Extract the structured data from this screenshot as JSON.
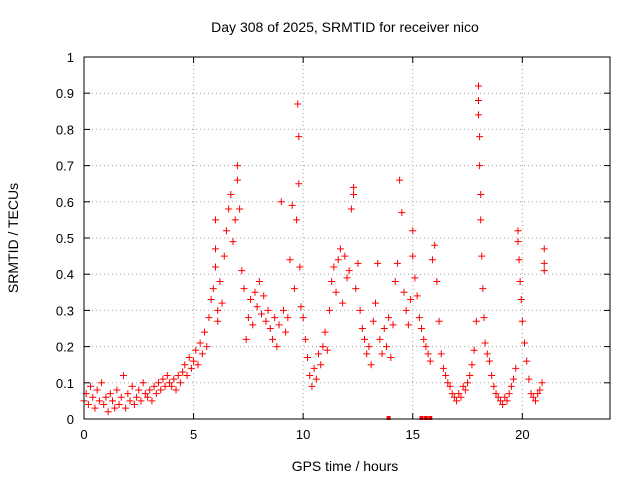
{
  "chart_data": {
    "type": "scatter",
    "title": "Day 308 of 2025, SRMTID for receiver nico",
    "xlabel": "GPS time / hours",
    "ylabel": "SRMTID / TECUs",
    "xlim": [
      0,
      24
    ],
    "ylim": [
      0,
      1
    ],
    "xticks": [
      0,
      5,
      10,
      15,
      20
    ],
    "yticks": [
      0,
      0.1,
      0.2,
      0.3,
      0.4,
      0.5,
      0.6,
      0.7,
      0.8,
      0.9,
      1
    ],
    "grid": true,
    "marker": "plus",
    "color": "#ff0000",
    "series": [
      {
        "name": "SRMTID",
        "points": [
          [
            0.0,
            0.05
          ],
          [
            0.1,
            0.07
          ],
          [
            0.2,
            0.04
          ],
          [
            0.3,
            0.09
          ],
          [
            0.4,
            0.06
          ],
          [
            0.5,
            0.03
          ],
          [
            0.6,
            0.08
          ],
          [
            0.7,
            0.05
          ],
          [
            0.8,
            0.1
          ],
          [
            0.9,
            0.04
          ],
          [
            1.0,
            0.06
          ],
          [
            1.1,
            0.02
          ],
          [
            1.2,
            0.07
          ],
          [
            1.3,
            0.05
          ],
          [
            1.4,
            0.03
          ],
          [
            1.5,
            0.08
          ],
          [
            1.6,
            0.04
          ],
          [
            1.7,
            0.06
          ],
          [
            1.8,
            0.12
          ],
          [
            1.9,
            0.03
          ],
          [
            2.0,
            0.07
          ],
          [
            2.1,
            0.05
          ],
          [
            2.2,
            0.09
          ],
          [
            2.3,
            0.04
          ],
          [
            2.4,
            0.06
          ],
          [
            2.5,
            0.08
          ],
          [
            2.6,
            0.05
          ],
          [
            2.7,
            0.1
          ],
          [
            2.8,
            0.07
          ],
          [
            2.9,
            0.06
          ],
          [
            3.0,
            0.08
          ],
          [
            3.1,
            0.05
          ],
          [
            3.2,
            0.09
          ],
          [
            3.3,
            0.07
          ],
          [
            3.4,
            0.1
          ],
          [
            3.5,
            0.08
          ],
          [
            3.6,
            0.11
          ],
          [
            3.7,
            0.09
          ],
          [
            3.8,
            0.12
          ],
          [
            3.9,
            0.1
          ],
          [
            4.0,
            0.09
          ],
          [
            4.1,
            0.11
          ],
          [
            4.2,
            0.08
          ],
          [
            4.3,
            0.12
          ],
          [
            4.4,
            0.1
          ],
          [
            4.5,
            0.13
          ],
          [
            4.6,
            0.15
          ],
          [
            4.7,
            0.12
          ],
          [
            4.8,
            0.17
          ],
          [
            4.9,
            0.14
          ],
          [
            5.0,
            0.16
          ],
          [
            5.1,
            0.19
          ],
          [
            5.2,
            0.15
          ],
          [
            5.3,
            0.21
          ],
          [
            5.4,
            0.18
          ],
          [
            5.5,
            0.24
          ],
          [
            5.6,
            0.2
          ],
          [
            5.7,
            0.28
          ],
          [
            5.8,
            0.33
          ],
          [
            5.9,
            0.36
          ],
          [
            6.0,
            0.42
          ],
          [
            6.0,
            0.47
          ],
          [
            6.0,
            0.55
          ],
          [
            6.1,
            0.3
          ],
          [
            6.1,
            0.27
          ],
          [
            6.2,
            0.38
          ],
          [
            6.3,
            0.32
          ],
          [
            6.4,
            0.45
          ],
          [
            6.5,
            0.52
          ],
          [
            6.6,
            0.58
          ],
          [
            6.7,
            0.62
          ],
          [
            6.8,
            0.49
          ],
          [
            6.9,
            0.55
          ],
          [
            7.0,
            0.7
          ],
          [
            7.0,
            0.66
          ],
          [
            7.1,
            0.58
          ],
          [
            7.2,
            0.41
          ],
          [
            7.3,
            0.36
          ],
          [
            7.4,
            0.22
          ],
          [
            7.5,
            0.28
          ],
          [
            7.6,
            0.33
          ],
          [
            7.7,
            0.26
          ],
          [
            7.8,
            0.35
          ],
          [
            7.9,
            0.31
          ],
          [
            8.0,
            0.38
          ],
          [
            8.1,
            0.29
          ],
          [
            8.2,
            0.34
          ],
          [
            8.3,
            0.27
          ],
          [
            8.4,
            0.3
          ],
          [
            8.5,
            0.25
          ],
          [
            8.6,
            0.22
          ],
          [
            8.7,
            0.28
          ],
          [
            8.8,
            0.2
          ],
          [
            8.9,
            0.26
          ],
          [
            9.0,
            0.6
          ],
          [
            9.1,
            0.3
          ],
          [
            9.2,
            0.24
          ],
          [
            9.3,
            0.28
          ],
          [
            9.4,
            0.44
          ],
          [
            9.5,
            0.59
          ],
          [
            9.6,
            0.36
          ],
          [
            9.7,
            0.55
          ],
          [
            9.75,
            0.87
          ],
          [
            9.8,
            0.78
          ],
          [
            9.8,
            0.65
          ],
          [
            9.85,
            0.42
          ],
          [
            9.9,
            0.31
          ],
          [
            10.0,
            0.28
          ],
          [
            10.1,
            0.22
          ],
          [
            10.2,
            0.17
          ],
          [
            10.3,
            0.12
          ],
          [
            10.4,
            0.09
          ],
          [
            10.5,
            0.14
          ],
          [
            10.6,
            0.11
          ],
          [
            10.7,
            0.18
          ],
          [
            10.8,
            0.15
          ],
          [
            10.9,
            0.2
          ],
          [
            11.0,
            0.24
          ],
          [
            11.1,
            0.19
          ],
          [
            11.2,
            0.3
          ],
          [
            11.3,
            0.38
          ],
          [
            11.4,
            0.42
          ],
          [
            11.5,
            0.35
          ],
          [
            11.6,
            0.44
          ],
          [
            11.7,
            0.47
          ],
          [
            11.8,
            0.32
          ],
          [
            11.9,
            0.45
          ],
          [
            12.0,
            0.39
          ],
          [
            12.1,
            0.41
          ],
          [
            12.2,
            0.58
          ],
          [
            12.3,
            0.64
          ],
          [
            12.3,
            0.62
          ],
          [
            12.4,
            0.36
          ],
          [
            12.5,
            0.43
          ],
          [
            12.6,
            0.3
          ],
          [
            12.7,
            0.25
          ],
          [
            12.8,
            0.22
          ],
          [
            12.9,
            0.18
          ],
          [
            13.0,
            0.2
          ],
          [
            13.1,
            0.15
          ],
          [
            13.2,
            0.27
          ],
          [
            13.3,
            0.32
          ],
          [
            13.4,
            0.43
          ],
          [
            13.5,
            0.22
          ],
          [
            13.6,
            0.18
          ],
          [
            13.7,
            0.25
          ],
          [
            13.8,
            0.2
          ],
          [
            13.9,
            0.28
          ],
          [
            14.0,
            0.17
          ],
          [
            14.1,
            0.26
          ],
          [
            14.2,
            0.38
          ],
          [
            14.3,
            0.43
          ],
          [
            14.4,
            0.66
          ],
          [
            14.5,
            0.57
          ],
          [
            14.6,
            0.35
          ],
          [
            14.7,
            0.3
          ],
          [
            14.8,
            0.26
          ],
          [
            14.9,
            0.33
          ],
          [
            15.0,
            0.45
          ],
          [
            15.0,
            0.52
          ],
          [
            15.1,
            0.39
          ],
          [
            15.2,
            0.34
          ],
          [
            15.3,
            0.28
          ],
          [
            15.4,
            0.25
          ],
          [
            15.5,
            0.22
          ],
          [
            15.6,
            0.2
          ],
          [
            15.7,
            0.18
          ],
          [
            15.8,
            0.16
          ],
          [
            15.9,
            0.44
          ],
          [
            16.0,
            0.48
          ],
          [
            16.1,
            0.38
          ],
          [
            16.2,
            0.27
          ],
          [
            16.3,
            0.18
          ],
          [
            16.4,
            0.14
          ],
          [
            16.5,
            0.12
          ],
          [
            16.6,
            0.1
          ],
          [
            16.7,
            0.09
          ],
          [
            16.8,
            0.07
          ],
          [
            16.9,
            0.06
          ],
          [
            17.0,
            0.05
          ],
          [
            17.1,
            0.07
          ],
          [
            17.2,
            0.06
          ],
          [
            17.3,
            0.09
          ],
          [
            17.4,
            0.08
          ],
          [
            17.5,
            0.1
          ],
          [
            17.6,
            0.12
          ],
          [
            17.7,
            0.15
          ],
          [
            17.8,
            0.19
          ],
          [
            17.9,
            0.27
          ],
          [
            18.0,
            0.92
          ],
          [
            18.0,
            0.88
          ],
          [
            18.0,
            0.84
          ],
          [
            18.05,
            0.78
          ],
          [
            18.05,
            0.7
          ],
          [
            18.1,
            0.62
          ],
          [
            18.1,
            0.55
          ],
          [
            18.15,
            0.45
          ],
          [
            18.2,
            0.36
          ],
          [
            18.25,
            0.28
          ],
          [
            18.3,
            0.21
          ],
          [
            18.4,
            0.18
          ],
          [
            18.5,
            0.16
          ],
          [
            18.6,
            0.12
          ],
          [
            18.7,
            0.09
          ],
          [
            18.8,
            0.07
          ],
          [
            18.9,
            0.06
          ],
          [
            19.0,
            0.05
          ],
          [
            19.1,
            0.04
          ],
          [
            19.2,
            0.06
          ],
          [
            19.3,
            0.05
          ],
          [
            19.4,
            0.07
          ],
          [
            19.5,
            0.09
          ],
          [
            19.6,
            0.11
          ],
          [
            19.7,
            0.14
          ],
          [
            19.8,
            0.52
          ],
          [
            19.8,
            0.49
          ],
          [
            19.85,
            0.44
          ],
          [
            19.9,
            0.38
          ],
          [
            19.95,
            0.33
          ],
          [
            20.0,
            0.27
          ],
          [
            20.1,
            0.21
          ],
          [
            20.2,
            0.16
          ],
          [
            20.3,
            0.11
          ],
          [
            20.4,
            0.07
          ],
          [
            20.5,
            0.06
          ],
          [
            20.6,
            0.05
          ],
          [
            20.7,
            0.07
          ],
          [
            20.8,
            0.08
          ],
          [
            20.9,
            0.1
          ],
          [
            21.0,
            0.47
          ],
          [
            21.0,
            0.43
          ],
          [
            21.0,
            0.41
          ]
        ]
      }
    ],
    "markers_on_axis": [
      13.9,
      15.4,
      15.6,
      15.8
    ]
  }
}
